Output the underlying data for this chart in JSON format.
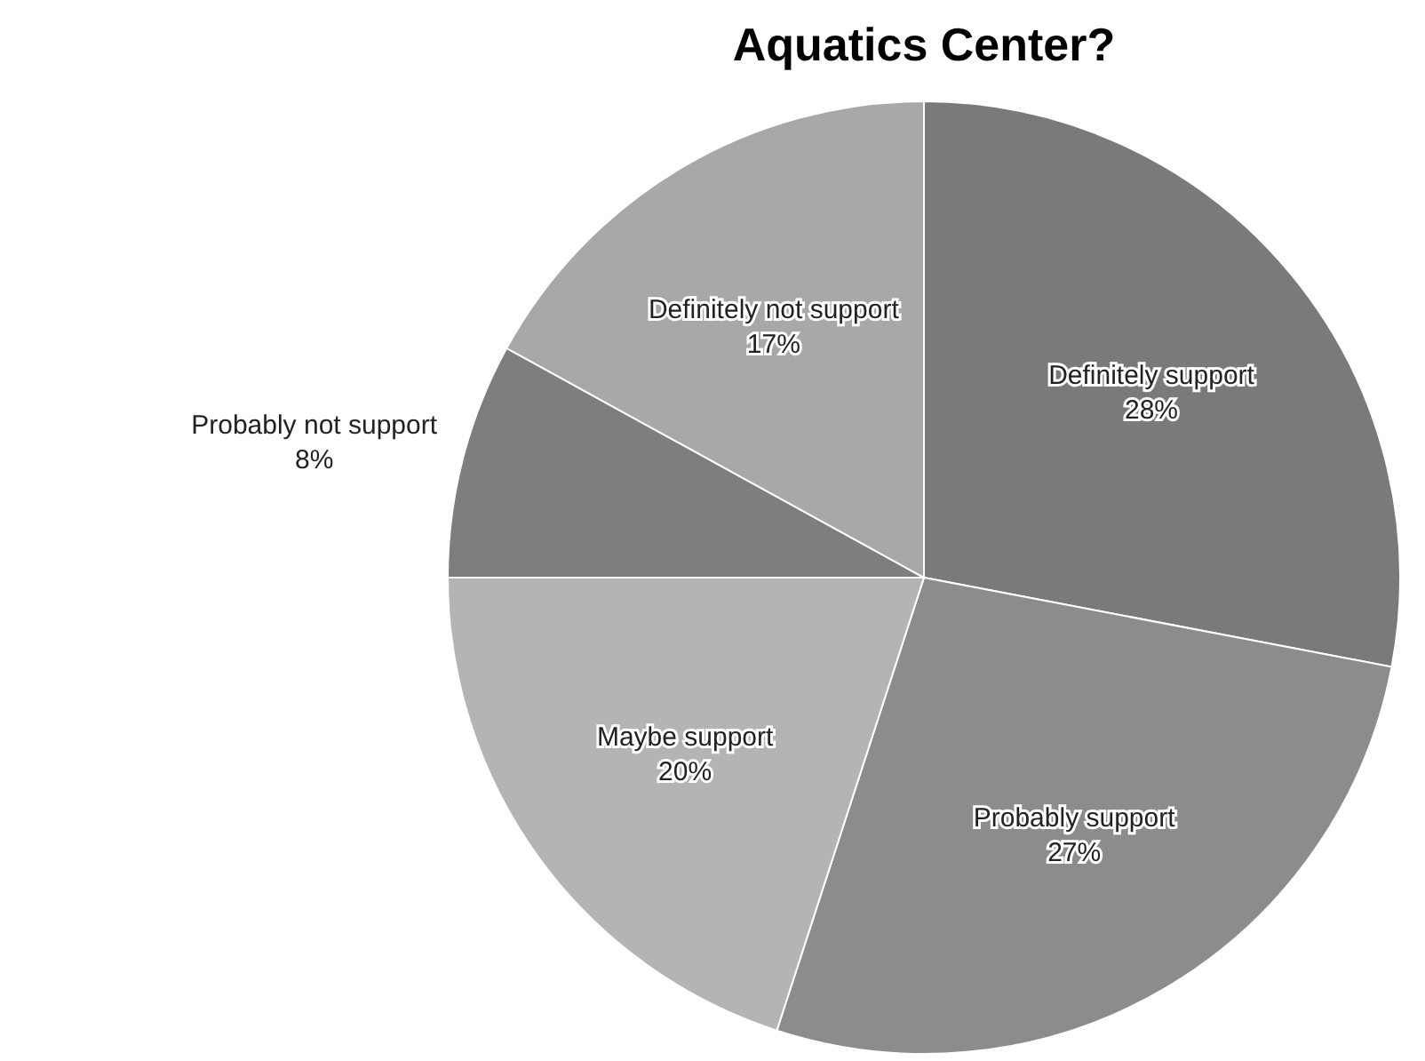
{
  "chart_data": {
    "type": "pie",
    "title": "Aquatics Center?",
    "categories": [
      "Definitely support",
      "Probably support",
      "Maybe support",
      "Probably not support",
      "Definitely not support"
    ],
    "values": [
      28,
      27,
      20,
      8,
      17
    ],
    "colors": [
      "#7a7a7a",
      "#8c8c8c",
      "#b4b4b4",
      "#7e7e7e",
      "#a8a8a8"
    ],
    "value_labels": [
      "28%",
      "27%",
      "20%",
      "8%",
      "17%"
    ],
    "legend": false
  }
}
